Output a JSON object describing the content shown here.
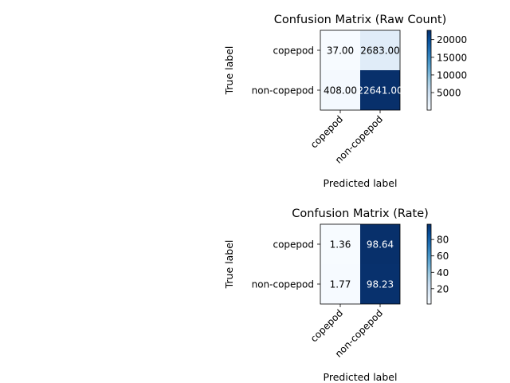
{
  "chart_data": [
    {
      "type": "heatmap",
      "title": "Confusion Matrix (Raw Count)",
      "xlabel": "Predicted label",
      "ylabel": "True label",
      "x_categories": [
        "copepod",
        "non-copepod"
      ],
      "y_categories": [
        "copepod",
        "non-copepod"
      ],
      "values": [
        [
          37.0,
          2683.0
        ],
        [
          408.0,
          22641.0
        ]
      ],
      "cell_labels": [
        [
          "37.00",
          "2683.00"
        ],
        [
          "408.00",
          "22641.00"
        ]
      ],
      "colorbar": {
        "min": 37,
        "max": 22641,
        "ticks": [
          5000,
          10000,
          15000,
          20000
        ]
      },
      "colormap": [
        "#f7fbff",
        "#deebf7",
        "#c6dbef",
        "#9ecae1",
        "#6baed6",
        "#4292c6",
        "#2171b5",
        "#08519c",
        "#08306b"
      ],
      "grid": false
    },
    {
      "type": "heatmap",
      "title": "Confusion Matrix (Rate)",
      "xlabel": "Predicted label",
      "ylabel": "True label",
      "x_categories": [
        "copepod",
        "non-copepod"
      ],
      "y_categories": [
        "copepod",
        "non-copepod"
      ],
      "values": [
        [
          1.36,
          98.64
        ],
        [
          1.77,
          98.23
        ]
      ],
      "cell_labels": [
        [
          "1.36",
          "98.64"
        ],
        [
          "1.77",
          "98.23"
        ]
      ],
      "colorbar": {
        "min": 1.36,
        "max": 98.64,
        "ticks": [
          20,
          40,
          60,
          80
        ]
      },
      "colormap": [
        "#f7fbff",
        "#deebf7",
        "#c6dbef",
        "#9ecae1",
        "#6baed6",
        "#4292c6",
        "#2171b5",
        "#08519c",
        "#08306b"
      ],
      "grid": false
    }
  ]
}
